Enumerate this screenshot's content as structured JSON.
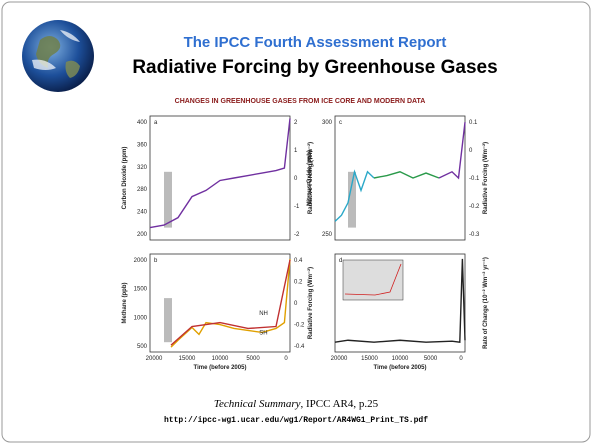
{
  "header": {
    "title": "The IPCC Fourth Assessment Report",
    "subtitle": "Radiative Forcing by Greenhouse Gases"
  },
  "figure": {
    "title": "Changes in Greenhouse Gases from Ice Core and Modern Data",
    "x_label": "Time (before 2005)",
    "x_ticks": [
      "20000",
      "15000",
      "10000",
      "5000",
      "0"
    ],
    "panels": [
      {
        "label": "a",
        "y_label": "Carbon Dioxide (ppm)",
        "y2_label": "Radiative Forcing (Wm⁻²)",
        "yticks": [
          "400",
          "360",
          "320",
          "280",
          "240",
          "200"
        ],
        "y2ticks": [
          "2",
          "1",
          "0",
          "-1",
          "-2"
        ]
      },
      {
        "label": "c",
        "y_label": "Nitrous Oxide (ppb)",
        "y2_label": "Radiative Forcing (Wm⁻²)",
        "yticks": [
          "300",
          "250"
        ],
        "y2ticks": [
          "0.1",
          "0",
          "-0.1",
          "-0.2",
          "-0.3"
        ]
      },
      {
        "label": "b",
        "y_label": "Methane (ppb)",
        "y2_label": "Radiative Forcing (Wm⁻²)",
        "yticks": [
          "2000",
          "1500",
          "1000",
          "500"
        ],
        "y2ticks": [
          "0.4",
          "0.2",
          "0",
          "-0.2",
          "-0.4"
        ],
        "annotations": [
          "NH",
          "SH"
        ]
      },
      {
        "label": "d",
        "y2_label": "Rate of Change (10⁻² Wm⁻² yr⁻¹)"
      }
    ]
  },
  "footer": {
    "source_italic": "Technical Summary",
    "source_rest": ", IPCC AR4, p.25",
    "url": "http://ipcc-wg1.ucar.edu/wg1/Report/AR4WG1_Print_TS.pdf"
  }
}
